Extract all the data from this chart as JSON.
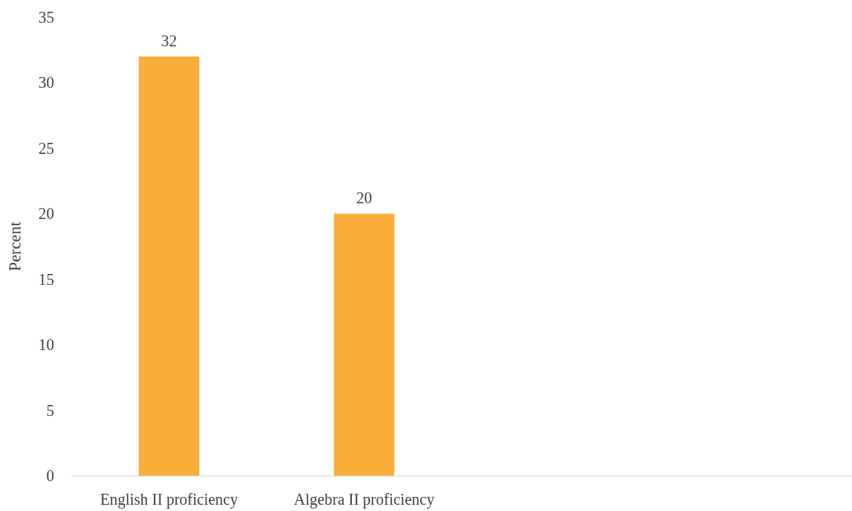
{
  "chart_data": {
    "type": "bar",
    "ylabel": "Percent",
    "categories": [
      "English II proficiency",
      "Algebra II proficiency",
      null,
      null
    ],
    "values": [
      32,
      20,
      null,
      null
    ],
    "color": "#f9ae3b",
    "ylim": [
      0,
      35
    ],
    "yticks": [
      0,
      5,
      10,
      15,
      20,
      25,
      30,
      35
    ],
    "grid": false,
    "data_labels": true
  }
}
